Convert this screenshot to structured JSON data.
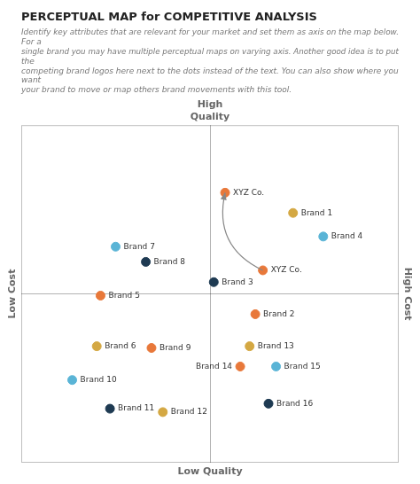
{
  "chart_data": {
    "type": "scatter",
    "title": "PERCEPTUAL MAP for COMPETITIVE ANALYSIS",
    "subtitle": "Identify key attributes that are relevant for your market and set them as axis on the map below. For a\nsingle brand you may have multiple perceptual maps on varying axis. Another good idea is to put the\ncompeting brand logos here next to the dots instead of the text. You can also show where you want\nyour brand to move or map others brand movements with this tool.",
    "axis_labels": {
      "top": "High\nQuality",
      "bottom": "Low Quality",
      "left": "Low Cost",
      "right": "High Cost"
    },
    "labels": [
      "XYZ Co.",
      "XYZ Co.",
      "Brand 1",
      "Brand 2",
      "Brand 3",
      "Brand 4",
      "Brand 5",
      "Brand 6",
      "Brand 7",
      "Brand 8",
      "Brand 9",
      "Brand 10",
      "Brand 11",
      "Brand 12",
      "Brand 13",
      "Brand 14",
      "Brand 15",
      "Brand 16"
    ],
    "x": [
      0.54,
      0.64,
      0.72,
      0.62,
      0.51,
      0.8,
      0.21,
      0.2,
      0.25,
      0.33,
      0.345,
      0.135,
      0.235,
      0.375,
      0.605,
      0.58,
      0.675,
      0.655
    ],
    "values": [
      0.8,
      0.57,
      0.74,
      0.44,
      0.535,
      0.67,
      0.495,
      0.345,
      0.64,
      0.595,
      0.34,
      0.245,
      0.16,
      0.15,
      0.345,
      0.285,
      0.285,
      0.175
    ],
    "colors": [
      "#e8783a",
      "#e8783a",
      "#d4a843",
      "#e8783a",
      "#1e3a52",
      "#5ab4d6",
      "#e8783a",
      "#d4a843",
      "#5ab4d6",
      "#1e3a52",
      "#e8783a",
      "#5ab4d6",
      "#1e3a52",
      "#d4a843",
      "#d4a843",
      "#e8783a",
      "#5ab4d6",
      "#1e3a52"
    ],
    "xlim": [
      0,
      1
    ],
    "ylim": [
      0,
      1
    ],
    "xticks": [
      0.5
    ],
    "yticks": [
      0.5
    ],
    "grid": true,
    "tick_labels": false,
    "annotations": [
      {
        "type": "arrow",
        "x": [
          0.64,
          0.54
        ],
        "y": [
          0.57,
          0.8
        ]
      }
    ]
  }
}
